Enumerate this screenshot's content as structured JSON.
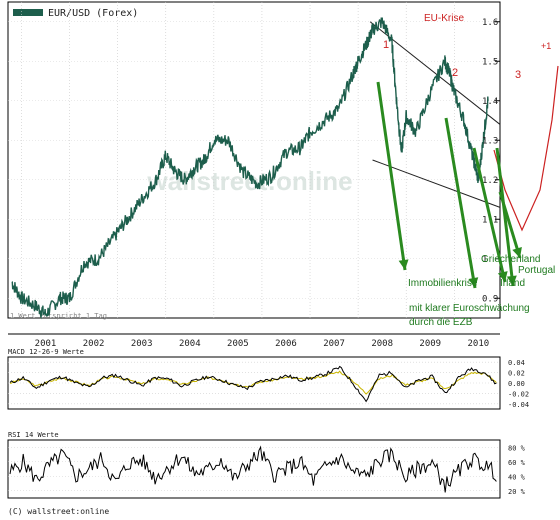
{
  "chart_data": [
    {
      "type": "line",
      "title": "EUR/USD (Forex)",
      "note": "1 Wert entspricht 1 Tag",
      "watermark": "wallstreet:online",
      "x_labels": [
        "2001",
        "2002",
        "2003",
        "2004",
        "2005",
        "2006",
        "2007",
        "2008",
        "2009",
        "2010"
      ],
      "y_ticks": [
        "1.6",
        "1.5",
        "1.4",
        "1.3",
        "1.2",
        "1.1",
        "1",
        "0.9"
      ],
      "ylim": [
        0.85,
        1.65
      ],
      "series": [
        {
          "color": "#1d5e4c",
          "x": [
            2000.8,
            2001.0,
            2001.3,
            2001.5,
            2001.8,
            2002.0,
            2002.3,
            2002.6,
            2002.9,
            2003.2,
            2003.5,
            2003.8,
            2004.0,
            2004.2,
            2004.4,
            2004.6,
            2004.8,
            2005.0,
            2005.3,
            2005.6,
            2005.9,
            2006.2,
            2006.5,
            2006.8,
            2007.0,
            2007.3,
            2007.6,
            2007.9,
            2008.0,
            2008.2,
            2008.3,
            2008.5,
            2008.7,
            2008.8,
            2008.9,
            2009.0,
            2009.2,
            2009.5,
            2009.8,
            2009.9,
            2010.0,
            2010.2,
            2010.4,
            2010.5,
            2010.6,
            2010.7
          ],
          "y": [
            0.94,
            0.9,
            0.88,
            0.86,
            0.9,
            0.9,
            0.99,
            1.0,
            1.05,
            1.1,
            1.15,
            1.2,
            1.26,
            1.22,
            1.2,
            1.23,
            1.25,
            1.3,
            1.3,
            1.22,
            1.19,
            1.21,
            1.27,
            1.28,
            1.32,
            1.35,
            1.38,
            1.47,
            1.5,
            1.55,
            1.58,
            1.6,
            1.55,
            1.4,
            1.27,
            1.36,
            1.32,
            1.42,
            1.5,
            1.47,
            1.42,
            1.35,
            1.25,
            1.2,
            1.3,
            1.4
          ]
        }
      ],
      "annotations": {
        "labels": [
          "1",
          "2",
          "3",
          "EU-Krise",
          "+1"
        ],
        "events": [
          "Immobilienkrise",
          "Griechenland",
          "Portugal",
          "Irland"
        ],
        "comment_line1": "mit klarer Euroschwächung",
        "comment_line2": "durch die EZB"
      },
      "colors": {
        "price": "#1d5e4c",
        "arrow": "#2a8a1f",
        "annotation": "#cc2222",
        "trendline": "#222222"
      }
    },
    {
      "type": "line",
      "title": "MACD 12-26-9 Werte",
      "y_ticks": [
        "0.04",
        "0.02",
        "0.00",
        "-0.02",
        "-0.04"
      ],
      "ylim": [
        -0.05,
        0.05
      ],
      "series": [
        {
          "color": "#000000",
          "values": [
            0.0,
            0.01,
            -0.01,
            0.005,
            0.012,
            0.0,
            -0.008,
            0.01,
            0.015,
            0.005,
            -0.005,
            0.01,
            0.008,
            -0.006,
            0.004,
            0.012,
            0.006,
            -0.004,
            -0.01,
            0.003,
            0.008,
            0.014,
            0.006,
            0.01,
            0.018,
            0.03,
            0.0,
            -0.035,
            0.015,
            0.02,
            -0.01,
            0.005,
            0.012,
            -0.02,
            0.01,
            0.028,
            0.02,
            -0.005
          ]
        },
        {
          "color": "#c9b600",
          "values": [
            0.0,
            0.008,
            -0.006,
            0.003,
            0.01,
            0.002,
            -0.005,
            0.008,
            0.012,
            0.006,
            -0.002,
            0.008,
            0.007,
            -0.003,
            0.003,
            0.01,
            0.006,
            -0.002,
            -0.007,
            0.002,
            0.006,
            0.011,
            0.007,
            0.009,
            0.015,
            0.022,
            0.004,
            -0.02,
            0.008,
            0.015,
            -0.004,
            0.003,
            0.009,
            -0.012,
            0.005,
            0.02,
            0.018,
            0.0
          ]
        }
      ]
    },
    {
      "type": "line",
      "title": "RSI 14 Werte",
      "y_ticks": [
        "80 %",
        "60 %",
        "40 %",
        "20 %"
      ],
      "ylim": [
        10,
        90
      ],
      "series": [
        {
          "color": "#000000",
          "values": [
            45,
            60,
            35,
            55,
            70,
            40,
            50,
            65,
            30,
            58,
            62,
            38,
            52,
            68,
            44,
            48,
            64,
            36,
            56,
            72,
            42,
            50,
            60,
            34,
            54,
            66,
            46,
            40,
            62,
            70,
            38,
            52,
            58,
            28,
            46,
            64,
            55,
            42
          ]
        }
      ]
    }
  ]
}
